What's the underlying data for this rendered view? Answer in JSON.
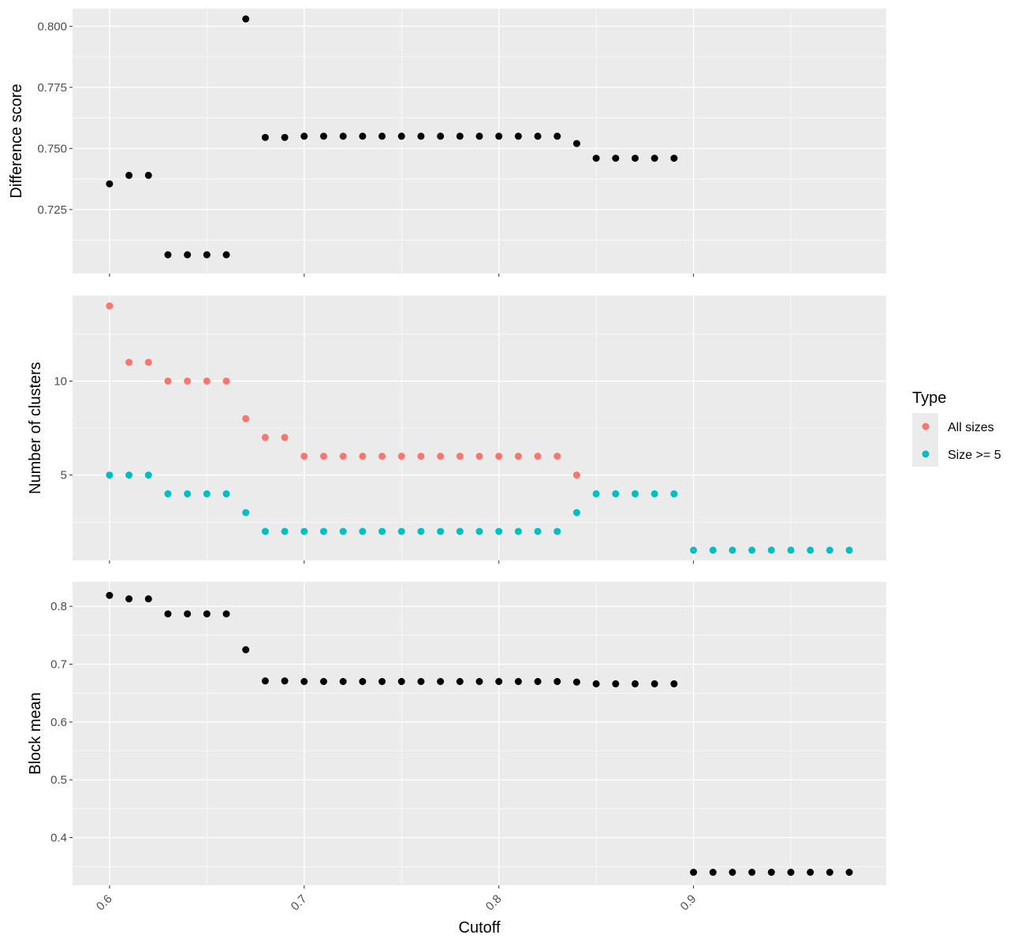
{
  "chart_data": {
    "type": "scatter",
    "xlabel": "Cutoff",
    "x_ticks": [
      0.6,
      0.7,
      0.8,
      0.9
    ],
    "x_tick_labels": [
      "0.6",
      "0.7",
      "0.8",
      "0.9"
    ],
    "xlim": [
      0.581,
      0.999
    ],
    "grid": true,
    "legend": {
      "title": "Type",
      "position": "right",
      "entries": [
        {
          "label": "All sizes",
          "color": "#F8766D"
        },
        {
          "label": "Size >= 5",
          "color": "#00BFC4"
        }
      ]
    },
    "panels": [
      {
        "ylabel": "Difference score",
        "ylim": [
          0.6988,
          0.8072
        ],
        "y_ticks": [
          0.725,
          0.75,
          0.775,
          0.8
        ],
        "y_tick_labels": [
          "0.725",
          "0.750",
          "0.775",
          "0.800"
        ],
        "series": [
          {
            "color": "#000000",
            "points": [
              [
                0.6,
                0.7355
              ],
              [
                0.61,
                0.739
              ],
              [
                0.62,
                0.739
              ],
              [
                0.63,
                0.7065
              ],
              [
                0.64,
                0.7065
              ],
              [
                0.65,
                0.7065
              ],
              [
                0.66,
                0.7065
              ],
              [
                0.67,
                0.803
              ],
              [
                0.68,
                0.7545
              ],
              [
                0.69,
                0.7545
              ],
              [
                0.7,
                0.755
              ],
              [
                0.71,
                0.755
              ],
              [
                0.72,
                0.755
              ],
              [
                0.73,
                0.755
              ],
              [
                0.74,
                0.755
              ],
              [
                0.75,
                0.755
              ],
              [
                0.76,
                0.755
              ],
              [
                0.77,
                0.755
              ],
              [
                0.78,
                0.755
              ],
              [
                0.79,
                0.755
              ],
              [
                0.8,
                0.755
              ],
              [
                0.81,
                0.755
              ],
              [
                0.82,
                0.755
              ],
              [
                0.83,
                0.755
              ],
              [
                0.84,
                0.752
              ],
              [
                0.85,
                0.746
              ],
              [
                0.86,
                0.746
              ],
              [
                0.87,
                0.746
              ],
              [
                0.88,
                0.746
              ],
              [
                0.89,
                0.746
              ]
            ]
          }
        ]
      },
      {
        "ylabel": "Number of clusters",
        "ylim": [
          0.45,
          14.55
        ],
        "y_ticks": [
          5,
          10
        ],
        "y_tick_labels": [
          "5",
          "10"
        ],
        "series": [
          {
            "name": "All sizes",
            "color": "#F8766D",
            "points": [
              [
                0.6,
                14
              ],
              [
                0.61,
                11
              ],
              [
                0.62,
                11
              ],
              [
                0.63,
                10
              ],
              [
                0.64,
                10
              ],
              [
                0.65,
                10
              ],
              [
                0.66,
                10
              ],
              [
                0.67,
                8
              ],
              [
                0.68,
                7
              ],
              [
                0.69,
                7
              ],
              [
                0.7,
                6
              ],
              [
                0.71,
                6
              ],
              [
                0.72,
                6
              ],
              [
                0.73,
                6
              ],
              [
                0.74,
                6
              ],
              [
                0.75,
                6
              ],
              [
                0.76,
                6
              ],
              [
                0.77,
                6
              ],
              [
                0.78,
                6
              ],
              [
                0.79,
                6
              ],
              [
                0.8,
                6
              ],
              [
                0.81,
                6
              ],
              [
                0.82,
                6
              ],
              [
                0.83,
                6
              ],
              [
                0.84,
                5
              ]
            ]
          },
          {
            "name": "Size >= 5",
            "color": "#00BFC4",
            "points": [
              [
                0.6,
                5
              ],
              [
                0.61,
                5
              ],
              [
                0.62,
                5
              ],
              [
                0.63,
                4
              ],
              [
                0.64,
                4
              ],
              [
                0.65,
                4
              ],
              [
                0.66,
                4
              ],
              [
                0.67,
                3
              ],
              [
                0.68,
                2
              ],
              [
                0.69,
                2
              ],
              [
                0.7,
                2
              ],
              [
                0.71,
                2
              ],
              [
                0.72,
                2
              ],
              [
                0.73,
                2
              ],
              [
                0.74,
                2
              ],
              [
                0.75,
                2
              ],
              [
                0.76,
                2
              ],
              [
                0.77,
                2
              ],
              [
                0.78,
                2
              ],
              [
                0.79,
                2
              ],
              [
                0.8,
                2
              ],
              [
                0.81,
                2
              ],
              [
                0.82,
                2
              ],
              [
                0.83,
                2
              ],
              [
                0.84,
                3
              ],
              [
                0.85,
                4
              ],
              [
                0.86,
                4
              ],
              [
                0.87,
                4
              ],
              [
                0.88,
                4
              ],
              [
                0.89,
                4
              ],
              [
                0.9,
                1
              ],
              [
                0.91,
                1
              ],
              [
                0.92,
                1
              ],
              [
                0.93,
                1
              ],
              [
                0.94,
                1
              ],
              [
                0.95,
                1
              ],
              [
                0.96,
                1
              ],
              [
                0.97,
                1
              ],
              [
                0.98,
                1
              ]
            ]
          }
        ]
      },
      {
        "ylabel": "Block mean",
        "ylim": [
          0.3175,
          0.8425
        ],
        "y_ticks": [
          0.4,
          0.5,
          0.6,
          0.7,
          0.8
        ],
        "y_tick_labels": [
          "0.4",
          "0.5",
          "0.6",
          "0.7",
          "0.8"
        ],
        "series": [
          {
            "color": "#000000",
            "points": [
              [
                0.6,
                0.819
              ],
              [
                0.61,
                0.813
              ],
              [
                0.62,
                0.813
              ],
              [
                0.63,
                0.787
              ],
              [
                0.64,
                0.787
              ],
              [
                0.65,
                0.787
              ],
              [
                0.66,
                0.787
              ],
              [
                0.67,
                0.725
              ],
              [
                0.68,
                0.671
              ],
              [
                0.69,
                0.671
              ],
              [
                0.7,
                0.67
              ],
              [
                0.71,
                0.67
              ],
              [
                0.72,
                0.67
              ],
              [
                0.73,
                0.67
              ],
              [
                0.74,
                0.67
              ],
              [
                0.75,
                0.67
              ],
              [
                0.76,
                0.67
              ],
              [
                0.77,
                0.67
              ],
              [
                0.78,
                0.67
              ],
              [
                0.79,
                0.67
              ],
              [
                0.8,
                0.67
              ],
              [
                0.81,
                0.67
              ],
              [
                0.82,
                0.67
              ],
              [
                0.83,
                0.67
              ],
              [
                0.84,
                0.669
              ],
              [
                0.85,
                0.666
              ],
              [
                0.86,
                0.666
              ],
              [
                0.87,
                0.666
              ],
              [
                0.88,
                0.666
              ],
              [
                0.89,
                0.666
              ],
              [
                0.9,
                0.34
              ],
              [
                0.91,
                0.34
              ],
              [
                0.92,
                0.34
              ],
              [
                0.93,
                0.34
              ],
              [
                0.94,
                0.34
              ],
              [
                0.95,
                0.34
              ],
              [
                0.96,
                0.34
              ],
              [
                0.97,
                0.34
              ],
              [
                0.98,
                0.34
              ]
            ]
          }
        ]
      }
    ]
  }
}
